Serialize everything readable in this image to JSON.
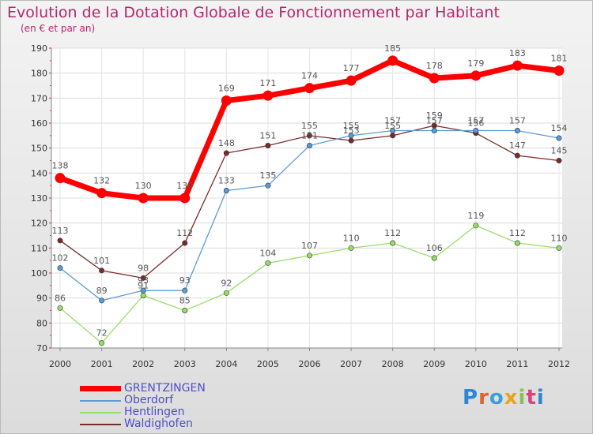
{
  "title": "Evolution de la Dotation Globale de Fonctionnement par Habitant",
  "subtitle": "(en € et par an)",
  "brand": "Proxiti",
  "chart_data": {
    "type": "line",
    "title": "Evolution de la Dotation Globale de Fonctionnement par Habitant",
    "subtitle": "(en € et par an)",
    "xlabel": "",
    "ylabel": "",
    "ylim": [
      70,
      190
    ],
    "yticks": [
      70,
      80,
      90,
      100,
      110,
      120,
      130,
      140,
      150,
      160,
      170,
      180,
      190
    ],
    "grid": true,
    "legend_position": "bottom-left",
    "x": [
      "2000",
      "2001",
      "2002",
      "2003",
      "2004",
      "2005",
      "2006",
      "2007",
      "2008",
      "2009",
      "2010",
      "2011",
      "2012"
    ],
    "series": [
      {
        "name": "GRENTZINGEN",
        "color": "#ff0000",
        "values": [
          138,
          132,
          130,
          130,
          169,
          171,
          174,
          177,
          185,
          178,
          179,
          183,
          181
        ]
      },
      {
        "name": "Oberdorf",
        "color": "#5b9bd5",
        "values": [
          102,
          89,
          93,
          93,
          133,
          135,
          151,
          155,
          157,
          157,
          157,
          157,
          154
        ]
      },
      {
        "name": "Hentlingen",
        "color": "#99dd66",
        "values": [
          86,
          72,
          91,
          85,
          92,
          104,
          107,
          110,
          112,
          106,
          119,
          112,
          110
        ]
      },
      {
        "name": "Waldighofen",
        "color": "#7b2a2a",
        "values": [
          113,
          101,
          98,
          112,
          148,
          151,
          155,
          153,
          155,
          159,
          156,
          147,
          145
        ]
      }
    ]
  }
}
